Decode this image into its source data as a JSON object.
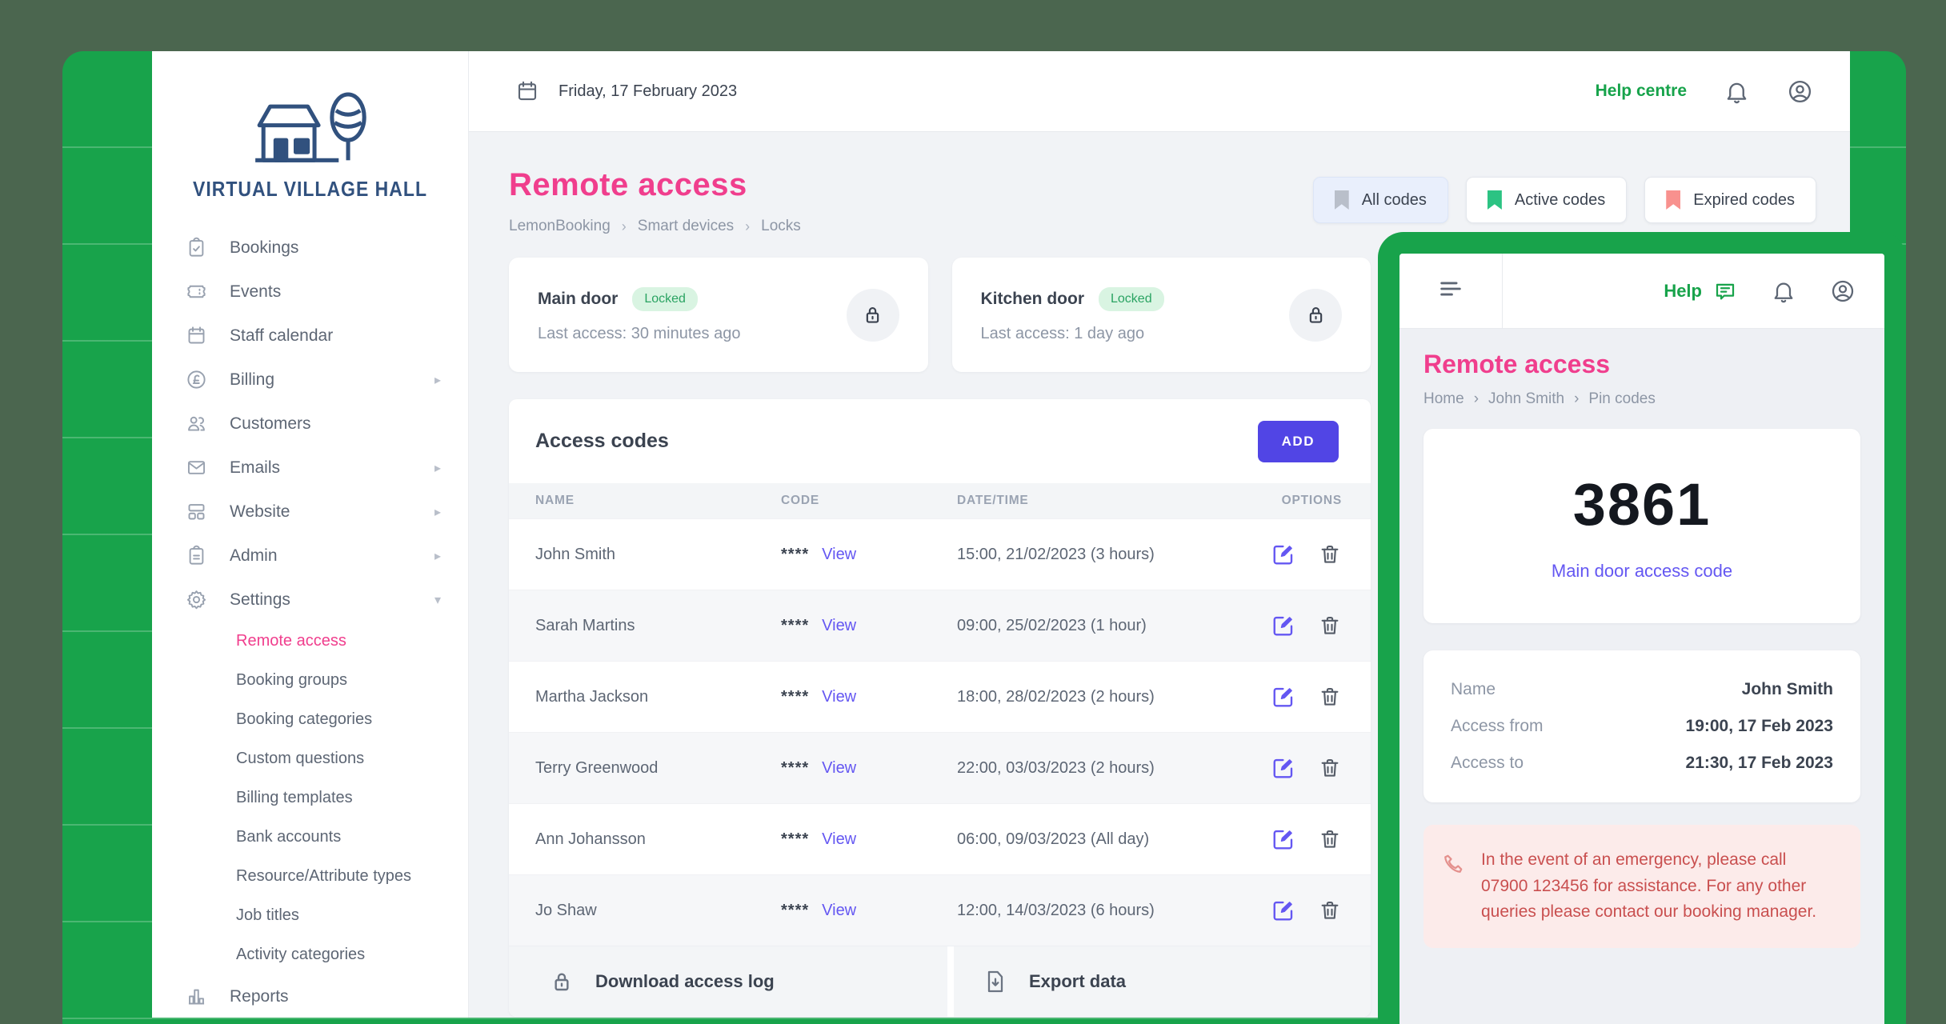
{
  "colors": {
    "green": "#18a34b",
    "pink": "#f03e8d",
    "indigo": "#5145e5",
    "link": "#6457f2",
    "canvas": "#4b664f"
  },
  "topbar": {
    "date": "Friday, 17 February 2023",
    "help_centre": "Help centre"
  },
  "sidebar": {
    "logo_text": "VIRTUAL VILLAGE HALL",
    "items": [
      {
        "label": "Bookings",
        "icon": "clipboard-check-icon"
      },
      {
        "label": "Events",
        "icon": "ticket-icon"
      },
      {
        "label": "Staff calendar",
        "icon": "calendar-icon"
      },
      {
        "label": "Billing",
        "icon": "pound-circle-icon",
        "chevron": "right"
      },
      {
        "label": "Customers",
        "icon": "users-icon"
      },
      {
        "label": "Emails",
        "icon": "mail-icon",
        "chevron": "right"
      },
      {
        "label": "Website",
        "icon": "browser-icon",
        "chevron": "right"
      },
      {
        "label": "Admin",
        "icon": "clipboard-list-icon",
        "chevron": "right"
      },
      {
        "label": "Settings",
        "icon": "gear-icon",
        "chevron": "down"
      }
    ],
    "settings_submenu": [
      "Remote access",
      "Booking groups",
      "Booking categories",
      "Custom questions",
      "Billing templates",
      "Bank accounts",
      "Resource/Attribute types",
      "Job titles",
      "Activity categories"
    ],
    "active_submenu": "Remote access",
    "footer_item": {
      "label": "Reports",
      "icon": "bar-chart-icon"
    }
  },
  "page": {
    "title": "Remote access",
    "breadcrumb": [
      "LemonBooking",
      "Smart devices",
      "Locks"
    ]
  },
  "filters": [
    {
      "label": "All codes",
      "bookmark_color": "#b9bfca",
      "selected": true
    },
    {
      "label": "Active codes",
      "bookmark_color": "#2cc383",
      "selected": false
    },
    {
      "label": "Expired codes",
      "bookmark_color": "#f8918e",
      "selected": false
    }
  ],
  "doors": [
    {
      "name": "Main door",
      "status": "Locked",
      "last_access": "Last access: 30 minutes ago"
    },
    {
      "name": "Kitchen door",
      "status": "Locked",
      "last_access": "Last access: 1 day ago"
    }
  ],
  "access_codes": {
    "title": "Access codes",
    "add_label": "ADD",
    "columns": [
      "NAME",
      "CODE",
      "DATE/TIME",
      "OPTIONS"
    ],
    "code_mask": "****",
    "view_label": "View",
    "rows": [
      {
        "name": "John Smith",
        "datetime": "15:00, 21/02/2023 (3 hours)"
      },
      {
        "name": "Sarah Martins",
        "datetime": "09:00, 25/02/2023 (1 hour)"
      },
      {
        "name": "Martha Jackson",
        "datetime": "18:00, 28/02/2023 (2 hours)"
      },
      {
        "name": "Terry Greenwood",
        "datetime": "22:00, 03/03/2023 (2 hours)"
      },
      {
        "name": "Ann Johansson",
        "datetime": "06:00, 09/03/2023 (All day)"
      },
      {
        "name": "Jo Shaw",
        "datetime": "12:00, 14/03/2023 (6 hours)"
      }
    ],
    "footer": [
      {
        "label": "Download access log",
        "icon": "padlock-icon"
      },
      {
        "label": "Export data",
        "icon": "file-export-icon"
      }
    ]
  },
  "mobile": {
    "help_label": "Help",
    "title": "Remote access",
    "breadcrumb": [
      "Home",
      "John Smith",
      "Pin codes"
    ],
    "pin": {
      "code": "3861",
      "link": "Main door access code"
    },
    "details": [
      {
        "label": "Name",
        "value": "John Smith"
      },
      {
        "label": "Access from",
        "value": "19:00, 17 Feb 2023"
      },
      {
        "label": "Access to",
        "value": "21:30, 17 Feb 2023"
      }
    ],
    "notice": "In the event of an emergency, please call 07900 123456 for assistance. For any other queries please contact our booking manager."
  }
}
